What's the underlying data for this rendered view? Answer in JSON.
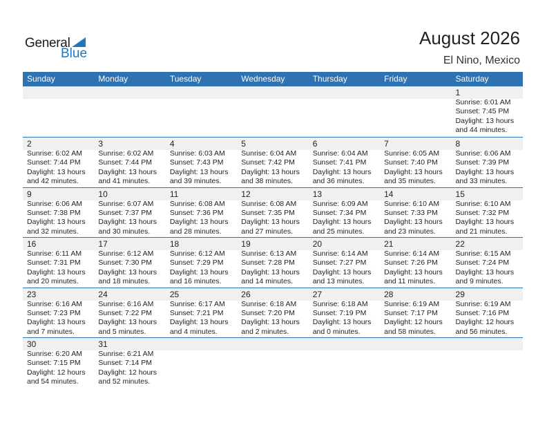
{
  "logo": {
    "general": "General",
    "blue": "Blue"
  },
  "header": {
    "title": "August 2026",
    "location": "El Nino, Mexico"
  },
  "weekdays": [
    "Sunday",
    "Monday",
    "Tuesday",
    "Wednesday",
    "Thursday",
    "Friday",
    "Saturday"
  ],
  "colors": {
    "accent": "#2e72b2",
    "strip": "#f0f0f0"
  },
  "weeks": [
    [
      null,
      null,
      null,
      null,
      null,
      null,
      {
        "day": "1",
        "sunrise": "Sunrise: 6:01 AM",
        "sunset": "Sunset: 7:45 PM",
        "daylight1": "Daylight: 13 hours",
        "daylight2": "and 44 minutes."
      }
    ],
    [
      {
        "day": "2",
        "sunrise": "Sunrise: 6:02 AM",
        "sunset": "Sunset: 7:44 PM",
        "daylight1": "Daylight: 13 hours",
        "daylight2": "and 42 minutes."
      },
      {
        "day": "3",
        "sunrise": "Sunrise: 6:02 AM",
        "sunset": "Sunset: 7:44 PM",
        "daylight1": "Daylight: 13 hours",
        "daylight2": "and 41 minutes."
      },
      {
        "day": "4",
        "sunrise": "Sunrise: 6:03 AM",
        "sunset": "Sunset: 7:43 PM",
        "daylight1": "Daylight: 13 hours",
        "daylight2": "and 39 minutes."
      },
      {
        "day": "5",
        "sunrise": "Sunrise: 6:04 AM",
        "sunset": "Sunset: 7:42 PM",
        "daylight1": "Daylight: 13 hours",
        "daylight2": "and 38 minutes."
      },
      {
        "day": "6",
        "sunrise": "Sunrise: 6:04 AM",
        "sunset": "Sunset: 7:41 PM",
        "daylight1": "Daylight: 13 hours",
        "daylight2": "and 36 minutes."
      },
      {
        "day": "7",
        "sunrise": "Sunrise: 6:05 AM",
        "sunset": "Sunset: 7:40 PM",
        "daylight1": "Daylight: 13 hours",
        "daylight2": "and 35 minutes."
      },
      {
        "day": "8",
        "sunrise": "Sunrise: 6:06 AM",
        "sunset": "Sunset: 7:39 PM",
        "daylight1": "Daylight: 13 hours",
        "daylight2": "and 33 minutes."
      }
    ],
    [
      {
        "day": "9",
        "sunrise": "Sunrise: 6:06 AM",
        "sunset": "Sunset: 7:38 PM",
        "daylight1": "Daylight: 13 hours",
        "daylight2": "and 32 minutes."
      },
      {
        "day": "10",
        "sunrise": "Sunrise: 6:07 AM",
        "sunset": "Sunset: 7:37 PM",
        "daylight1": "Daylight: 13 hours",
        "daylight2": "and 30 minutes."
      },
      {
        "day": "11",
        "sunrise": "Sunrise: 6:08 AM",
        "sunset": "Sunset: 7:36 PM",
        "daylight1": "Daylight: 13 hours",
        "daylight2": "and 28 minutes."
      },
      {
        "day": "12",
        "sunrise": "Sunrise: 6:08 AM",
        "sunset": "Sunset: 7:35 PM",
        "daylight1": "Daylight: 13 hours",
        "daylight2": "and 27 minutes."
      },
      {
        "day": "13",
        "sunrise": "Sunrise: 6:09 AM",
        "sunset": "Sunset: 7:34 PM",
        "daylight1": "Daylight: 13 hours",
        "daylight2": "and 25 minutes."
      },
      {
        "day": "14",
        "sunrise": "Sunrise: 6:10 AM",
        "sunset": "Sunset: 7:33 PM",
        "daylight1": "Daylight: 13 hours",
        "daylight2": "and 23 minutes."
      },
      {
        "day": "15",
        "sunrise": "Sunrise: 6:10 AM",
        "sunset": "Sunset: 7:32 PM",
        "daylight1": "Daylight: 13 hours",
        "daylight2": "and 21 minutes."
      }
    ],
    [
      {
        "day": "16",
        "sunrise": "Sunrise: 6:11 AM",
        "sunset": "Sunset: 7:31 PM",
        "daylight1": "Daylight: 13 hours",
        "daylight2": "and 20 minutes."
      },
      {
        "day": "17",
        "sunrise": "Sunrise: 6:12 AM",
        "sunset": "Sunset: 7:30 PM",
        "daylight1": "Daylight: 13 hours",
        "daylight2": "and 18 minutes."
      },
      {
        "day": "18",
        "sunrise": "Sunrise: 6:12 AM",
        "sunset": "Sunset: 7:29 PM",
        "daylight1": "Daylight: 13 hours",
        "daylight2": "and 16 minutes."
      },
      {
        "day": "19",
        "sunrise": "Sunrise: 6:13 AM",
        "sunset": "Sunset: 7:28 PM",
        "daylight1": "Daylight: 13 hours",
        "daylight2": "and 14 minutes."
      },
      {
        "day": "20",
        "sunrise": "Sunrise: 6:14 AM",
        "sunset": "Sunset: 7:27 PM",
        "daylight1": "Daylight: 13 hours",
        "daylight2": "and 13 minutes."
      },
      {
        "day": "21",
        "sunrise": "Sunrise: 6:14 AM",
        "sunset": "Sunset: 7:26 PM",
        "daylight1": "Daylight: 13 hours",
        "daylight2": "and 11 minutes."
      },
      {
        "day": "22",
        "sunrise": "Sunrise: 6:15 AM",
        "sunset": "Sunset: 7:24 PM",
        "daylight1": "Daylight: 13 hours",
        "daylight2": "and 9 minutes."
      }
    ],
    [
      {
        "day": "23",
        "sunrise": "Sunrise: 6:16 AM",
        "sunset": "Sunset: 7:23 PM",
        "daylight1": "Daylight: 13 hours",
        "daylight2": "and 7 minutes."
      },
      {
        "day": "24",
        "sunrise": "Sunrise: 6:16 AM",
        "sunset": "Sunset: 7:22 PM",
        "daylight1": "Daylight: 13 hours",
        "daylight2": "and 5 minutes."
      },
      {
        "day": "25",
        "sunrise": "Sunrise: 6:17 AM",
        "sunset": "Sunset: 7:21 PM",
        "daylight1": "Daylight: 13 hours",
        "daylight2": "and 4 minutes."
      },
      {
        "day": "26",
        "sunrise": "Sunrise: 6:18 AM",
        "sunset": "Sunset: 7:20 PM",
        "daylight1": "Daylight: 13 hours",
        "daylight2": "and 2 minutes."
      },
      {
        "day": "27",
        "sunrise": "Sunrise: 6:18 AM",
        "sunset": "Sunset: 7:19 PM",
        "daylight1": "Daylight: 13 hours",
        "daylight2": "and 0 minutes."
      },
      {
        "day": "28",
        "sunrise": "Sunrise: 6:19 AM",
        "sunset": "Sunset: 7:17 PM",
        "daylight1": "Daylight: 12 hours",
        "daylight2": "and 58 minutes."
      },
      {
        "day": "29",
        "sunrise": "Sunrise: 6:19 AM",
        "sunset": "Sunset: 7:16 PM",
        "daylight1": "Daylight: 12 hours",
        "daylight2": "and 56 minutes."
      }
    ],
    [
      {
        "day": "30",
        "sunrise": "Sunrise: 6:20 AM",
        "sunset": "Sunset: 7:15 PM",
        "daylight1": "Daylight: 12 hours",
        "daylight2": "and 54 minutes."
      },
      {
        "day": "31",
        "sunrise": "Sunrise: 6:21 AM",
        "sunset": "Sunset: 7:14 PM",
        "daylight1": "Daylight: 12 hours",
        "daylight2": "and 52 minutes."
      },
      null,
      null,
      null,
      null,
      null
    ]
  ]
}
